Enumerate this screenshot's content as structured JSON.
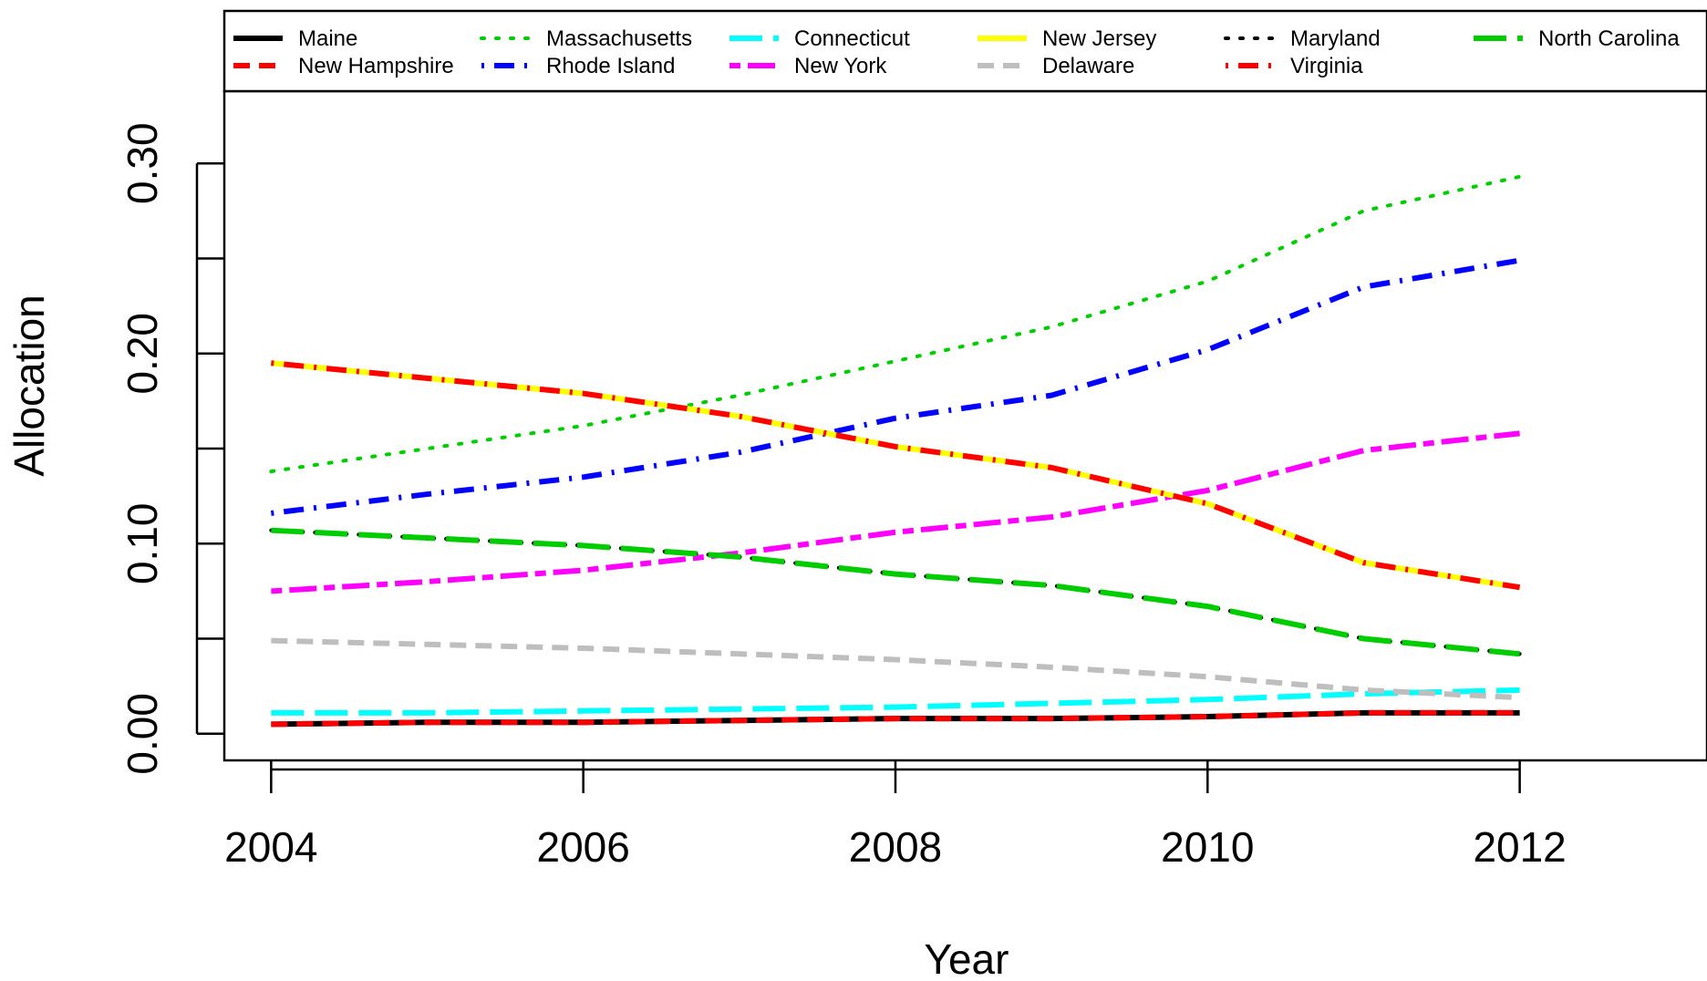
{
  "chart_data": {
    "type": "line",
    "title": "",
    "xlabel": "Year",
    "ylabel": "Allocation",
    "x": [
      2004,
      2005,
      2006,
      2007,
      2008,
      2009,
      2010,
      2011,
      2012
    ],
    "xlim": [
      2003.7,
      2013.2
    ],
    "ylim": [
      -0.014,
      0.338
    ],
    "xticks": [
      "2004",
      "2006",
      "2008",
      "2010",
      "2012"
    ],
    "yticks": [
      "0.00",
      "0.10",
      "0.20",
      "0.30"
    ],
    "minor_yticks": [
      0.05,
      0.15,
      0.25
    ],
    "grid": false,
    "legend_position": "top",
    "series": [
      {
        "name": "Maine",
        "color": "#000000",
        "dash": "solid",
        "values": [
          0.005,
          0.006,
          0.006,
          0.007,
          0.008,
          0.008,
          0.009,
          0.011,
          0.011
        ]
      },
      {
        "name": "New Hampshire",
        "color": "#ff0000",
        "dash": "dashed",
        "values": [
          0.005,
          0.006,
          0.006,
          0.007,
          0.008,
          0.008,
          0.009,
          0.011,
          0.011
        ]
      },
      {
        "name": "Massachusetts",
        "color": "#00cd00",
        "dash": "dotted",
        "values": [
          0.138,
          0.15,
          0.162,
          0.178,
          0.196,
          0.214,
          0.238,
          0.275,
          0.293
        ]
      },
      {
        "name": "Rhode Island",
        "color": "#0000ff",
        "dash": "dotdash",
        "values": [
          0.116,
          0.126,
          0.135,
          0.148,
          0.166,
          0.178,
          0.202,
          0.235,
          0.249
        ]
      },
      {
        "name": "Connecticut",
        "color": "#00ffff",
        "dash": "longdash",
        "values": [
          0.011,
          0.011,
          0.012,
          0.013,
          0.014,
          0.016,
          0.018,
          0.021,
          0.023
        ]
      },
      {
        "name": "New York",
        "color": "#ff00ff",
        "dash": "twodash",
        "values": [
          0.075,
          0.08,
          0.086,
          0.095,
          0.106,
          0.114,
          0.128,
          0.149,
          0.158
        ]
      },
      {
        "name": "New Jersey",
        "color": "#ffff00",
        "dash": "solid",
        "values": [
          0.195,
          0.187,
          0.179,
          0.167,
          0.151,
          0.14,
          0.121,
          0.09,
          0.077
        ]
      },
      {
        "name": "Delaware",
        "color": "#bebebe",
        "dash": "dashed",
        "values": [
          0.049,
          0.047,
          0.045,
          0.042,
          0.039,
          0.035,
          0.03,
          0.023,
          0.019
        ]
      },
      {
        "name": "Maryland",
        "color": "#000000",
        "dash": "dotted",
        "values": [
          0.107,
          0.103,
          0.099,
          0.093,
          0.084,
          0.078,
          0.067,
          0.05,
          0.042
        ]
      },
      {
        "name": "Virginia",
        "color": "#ff0000",
        "dash": "dotdash",
        "values": [
          0.195,
          0.187,
          0.179,
          0.167,
          0.151,
          0.14,
          0.121,
          0.09,
          0.077
        ]
      },
      {
        "name": "North Carolina",
        "color": "#00cd00",
        "dash": "longdash",
        "values": [
          0.107,
          0.103,
          0.099,
          0.093,
          0.084,
          0.078,
          0.067,
          0.05,
          0.042
        ]
      }
    ]
  }
}
